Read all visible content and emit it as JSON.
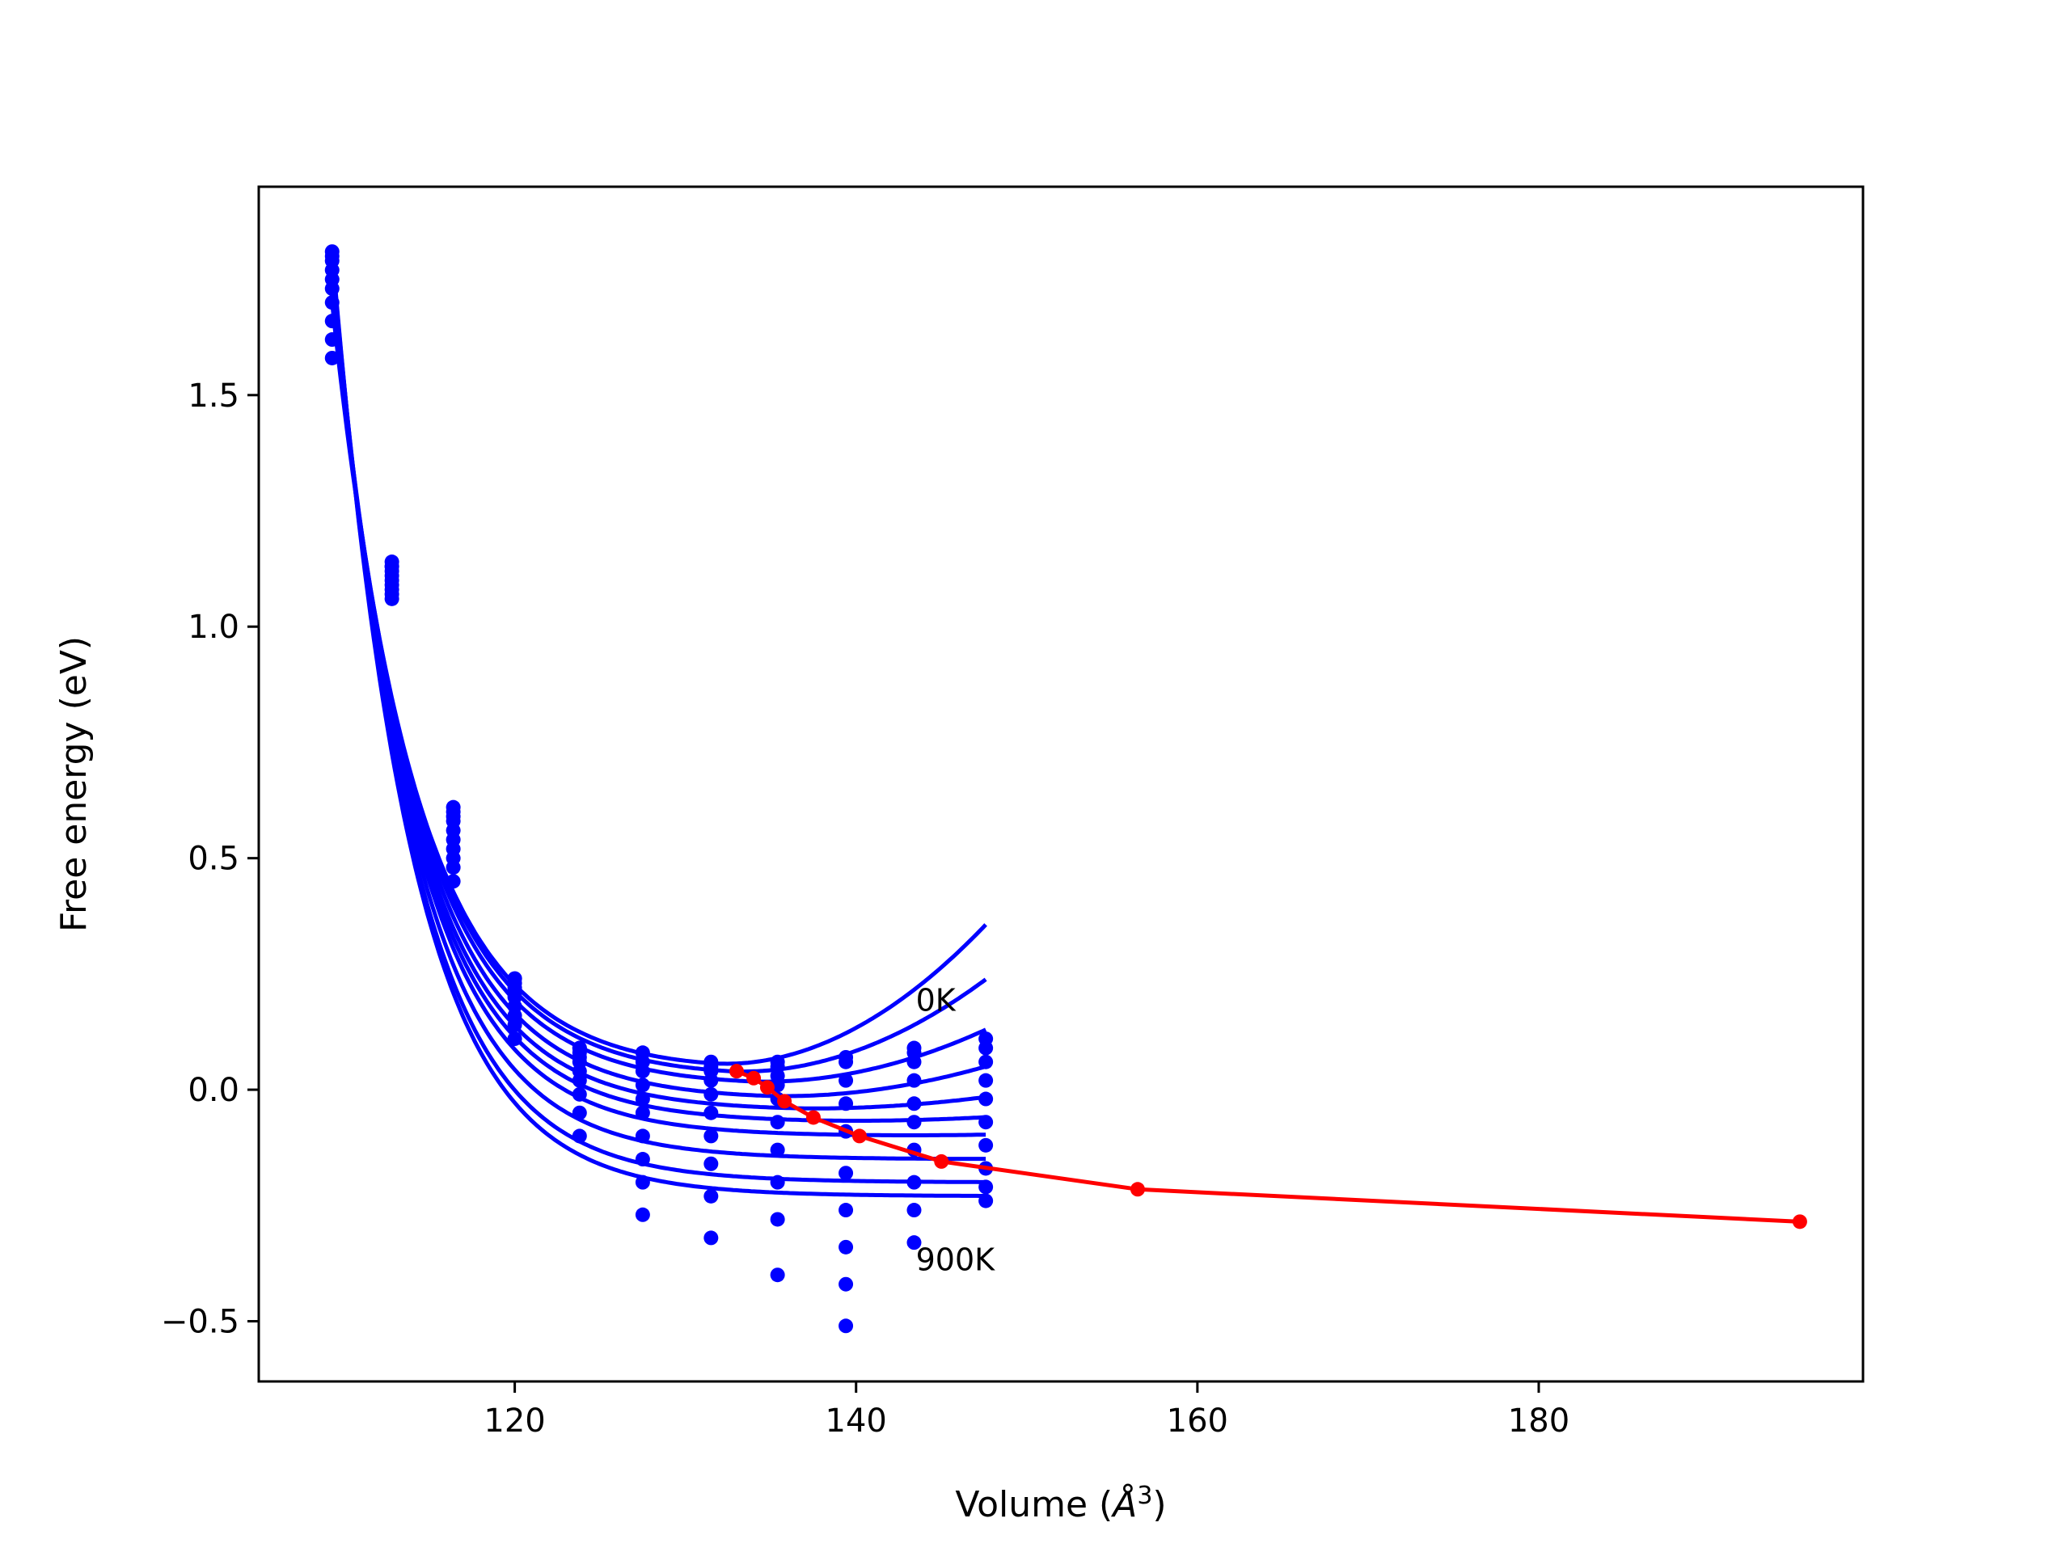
{
  "chart_data": {
    "type": "scatter",
    "title": "",
    "xlabel": "Volume (",
    "xlabel_unit": "Å",
    "xlabel_exp": "3",
    "xlabel_close": ")",
    "ylabel": "Free energy (eV)",
    "xlim": [
      105,
      199
    ],
    "ylim": [
      -0.63,
      1.95
    ],
    "xticks": [
      120,
      140,
      160,
      180
    ],
    "yticks": [
      -0.5,
      0.0,
      0.5,
      1.0,
      1.5
    ],
    "xtick_labels": [
      "120",
      "140",
      "160",
      "180"
    ],
    "ytick_labels": [
      "−0.5",
      "0.0",
      "0.5",
      "1.0",
      "1.5"
    ],
    "grid": false,
    "colors": {
      "fit": "#0000ff",
      "points": "#0000ff",
      "minimum": "#ff0000"
    },
    "annotations": [
      {
        "text": "0K",
        "x": 143.5,
        "y": 0.17
      },
      {
        "text": "900K",
        "x": 143.5,
        "y": -0.39
      }
    ],
    "volumes": [
      109.3,
      112.8,
      116.4,
      120.0,
      123.8,
      127.5,
      131.5,
      135.4,
      139.4,
      143.4,
      147.6
    ],
    "isotherms": [
      {
        "values": [
          1.58,
          1.06,
          0.45,
          0.11,
          -0.1,
          -0.27,
          -0.32,
          -0.4,
          -0.51,
          -0.33,
          -0.24
        ]
      },
      {
        "values": [
          1.62,
          1.07,
          0.48,
          0.14,
          -0.05,
          -0.2,
          -0.23,
          -0.28,
          -0.42,
          -0.26,
          -0.21
        ]
      },
      {
        "values": [
          1.66,
          1.08,
          0.5,
          0.16,
          -0.01,
          -0.15,
          -0.16,
          -0.2,
          -0.34,
          -0.2,
          -0.17
        ]
      },
      {
        "values": [
          1.7,
          1.09,
          0.52,
          0.18,
          0.02,
          -0.1,
          -0.1,
          -0.13,
          -0.26,
          -0.13,
          -0.12
        ]
      },
      {
        "values": [
          1.73,
          1.1,
          0.54,
          0.2,
          0.04,
          -0.05,
          -0.05,
          -0.07,
          -0.18,
          -0.07,
          -0.07
        ]
      },
      {
        "values": [
          1.75,
          1.11,
          0.56,
          0.21,
          0.06,
          -0.02,
          -0.01,
          -0.02,
          -0.09,
          -0.03,
          -0.02
        ]
      },
      {
        "values": [
          1.77,
          1.12,
          0.58,
          0.22,
          0.07,
          0.01,
          0.02,
          0.01,
          -0.03,
          0.02,
          0.02
        ]
      },
      {
        "values": [
          1.79,
          1.13,
          0.59,
          0.23,
          0.08,
          0.04,
          0.04,
          0.03,
          0.02,
          0.06,
          0.06
        ]
      },
      {
        "values": [
          1.8,
          1.13,
          0.6,
          0.24,
          0.09,
          0.06,
          0.05,
          0.05,
          0.06,
          0.08,
          0.09
        ]
      },
      {
        "values": [
          1.81,
          1.14,
          0.61,
          0.24,
          0.09,
          0.08,
          0.06,
          0.06,
          0.07,
          0.09,
          0.11
        ]
      }
    ],
    "fits": [
      {
        "x0": 131.5,
        "e0": 0.045,
        "b": 0.04,
        "r": 0.0,
        "c": 0.0012
      },
      {
        "x0": 132.4,
        "e0": 0.03,
        "b": 0.04,
        "r": 0.0,
        "c": 0.0009
      },
      {
        "x0": 133.5,
        "e0": 0.01,
        "b": 0.04,
        "r": 0.0,
        "c": 0.0006
      },
      {
        "x0": 134.4,
        "e0": -0.02,
        "b": 0.04,
        "r": 0.0,
        "c": 0.0004
      },
      {
        "x0": 135.6,
        "e0": -0.045,
        "b": 0.04,
        "r": 0.0,
        "c": 0.0002
      },
      {
        "x0": 137.5,
        "e0": -0.07,
        "b": 0.04,
        "r": 0.0,
        "c": 0.0001
      },
      {
        "x0": 140.5,
        "e0": -0.1,
        "b": 0.04,
        "r": 0.0,
        "c": 5e-05
      },
      {
        "x0": 145.0,
        "e0": -0.15,
        "b": 0.04,
        "r": 0.0,
        "c": 3e-05
      },
      {
        "x0": 150.0,
        "e0": -0.2,
        "b": 0.04,
        "r": 0.0,
        "c": 2e-05
      },
      {
        "x0": 156.0,
        "e0": -0.23,
        "b": 0.04,
        "r": 0.0,
        "c": 1e-05
      }
    ],
    "minimum_curve": {
      "x": [
        133.0,
        134.0,
        134.8,
        135.8,
        137.5,
        140.2,
        145.0,
        156.5,
        195.3
      ],
      "y": [
        0.04,
        0.025,
        0.005,
        -0.025,
        -0.06,
        -0.1,
        -0.155,
        -0.215,
        -0.285
      ]
    }
  }
}
